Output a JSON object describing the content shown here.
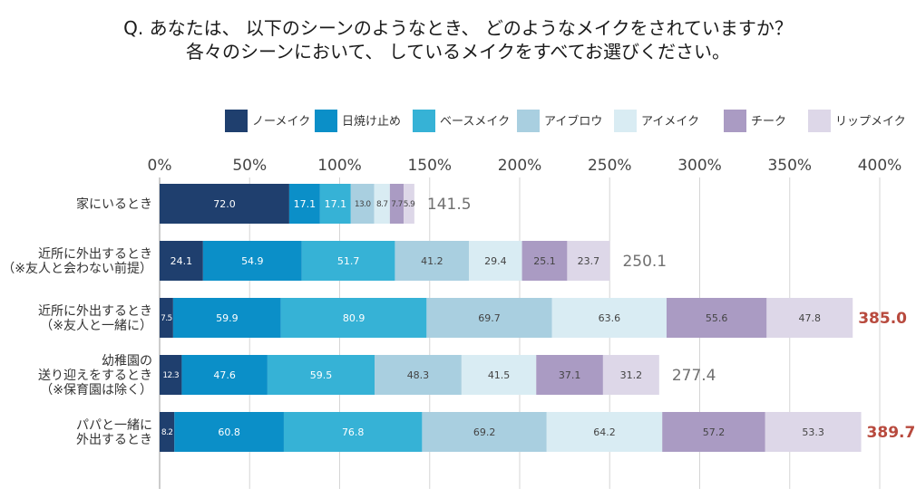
{
  "question": {
    "line1": "Q. あなたは、 以下のシーンのようなとき、 どのようなメイクをされていますか？",
    "line2": "各々のシーンにおいて、 しているメイクをすべてお選びください。"
  },
  "chart_data": {
    "type": "bar",
    "orientation": "horizontal",
    "stacked": true,
    "categories": [
      "家にいるとき",
      "近所に外出するとき\n（※友人と会わない前提）",
      "近所に外出するとき\n（※友人と一緒に）",
      "幼稚園の\n送り迎えをするとき\n（※保育園は除く）",
      "パパと一緒に\n外出するとき"
    ],
    "series": [
      {
        "name": "ノーメイク",
        "color": "#1f3f6e",
        "values": [
          72.0,
          24.1,
          7.5,
          12.3,
          8.2
        ],
        "labels": [
          "72.0",
          "24.1",
          "7.5",
          "12.3",
          "8.2"
        ]
      },
      {
        "name": "日焼け止め",
        "color": "#0b8fc8",
        "values": [
          17.1,
          54.9,
          59.9,
          47.6,
          60.8
        ],
        "labels": [
          "17.1",
          "54.9",
          "59.9",
          "47.6",
          "60.8"
        ]
      },
      {
        "name": "ベースメイク",
        "color": "#36b2d6",
        "values": [
          17.1,
          51.7,
          80.9,
          59.5,
          76.8
        ],
        "labels": [
          "17.1",
          "51.7",
          "80.9",
          "59.5",
          "76.8"
        ]
      },
      {
        "name": "アイブロウ",
        "color": "#a9cfe0",
        "values": [
          13.0,
          41.2,
          69.7,
          48.3,
          69.2
        ],
        "labels": [
          "13.0",
          "41.2",
          "69.7",
          "48.3",
          "69.2"
        ]
      },
      {
        "name": "アイメイク",
        "color": "#d9ecf3",
        "values": [
          8.7,
          29.4,
          63.6,
          41.5,
          64.2
        ],
        "labels": [
          "8.7",
          "29.4",
          "63.6",
          "41.5",
          "64.2"
        ]
      },
      {
        "name": "チーク",
        "color": "#aa9bc3",
        "values": [
          7.7,
          25.1,
          55.6,
          37.1,
          57.2
        ],
        "labels": [
          "7.7",
          "25.1",
          "55.6",
          "37.1",
          "57.2"
        ]
      },
      {
        "name": "リップメイク",
        "color": "#ddd7e8",
        "values": [
          5.9,
          23.7,
          47.8,
          31.2,
          53.3
        ],
        "labels": [
          "5.9",
          "23.7",
          "47.8",
          "31.2",
          "53.3"
        ]
      }
    ],
    "totals": [
      "141.5",
      "250.1",
      "385.0",
      "277.4",
      "389.7"
    ],
    "totals_highlighted": [
      false,
      false,
      true,
      false,
      true
    ],
    "total_color": "#707070",
    "highlight_color": "#b84a3e",
    "xlim": [
      0,
      400
    ],
    "xticks": [
      "0%",
      "50%",
      "100%",
      "150%",
      "200%",
      "250%",
      "300%",
      "350%",
      "400%"
    ],
    "xlabel": "",
    "ylabel": "",
    "legend": "top",
    "grid": true
  }
}
